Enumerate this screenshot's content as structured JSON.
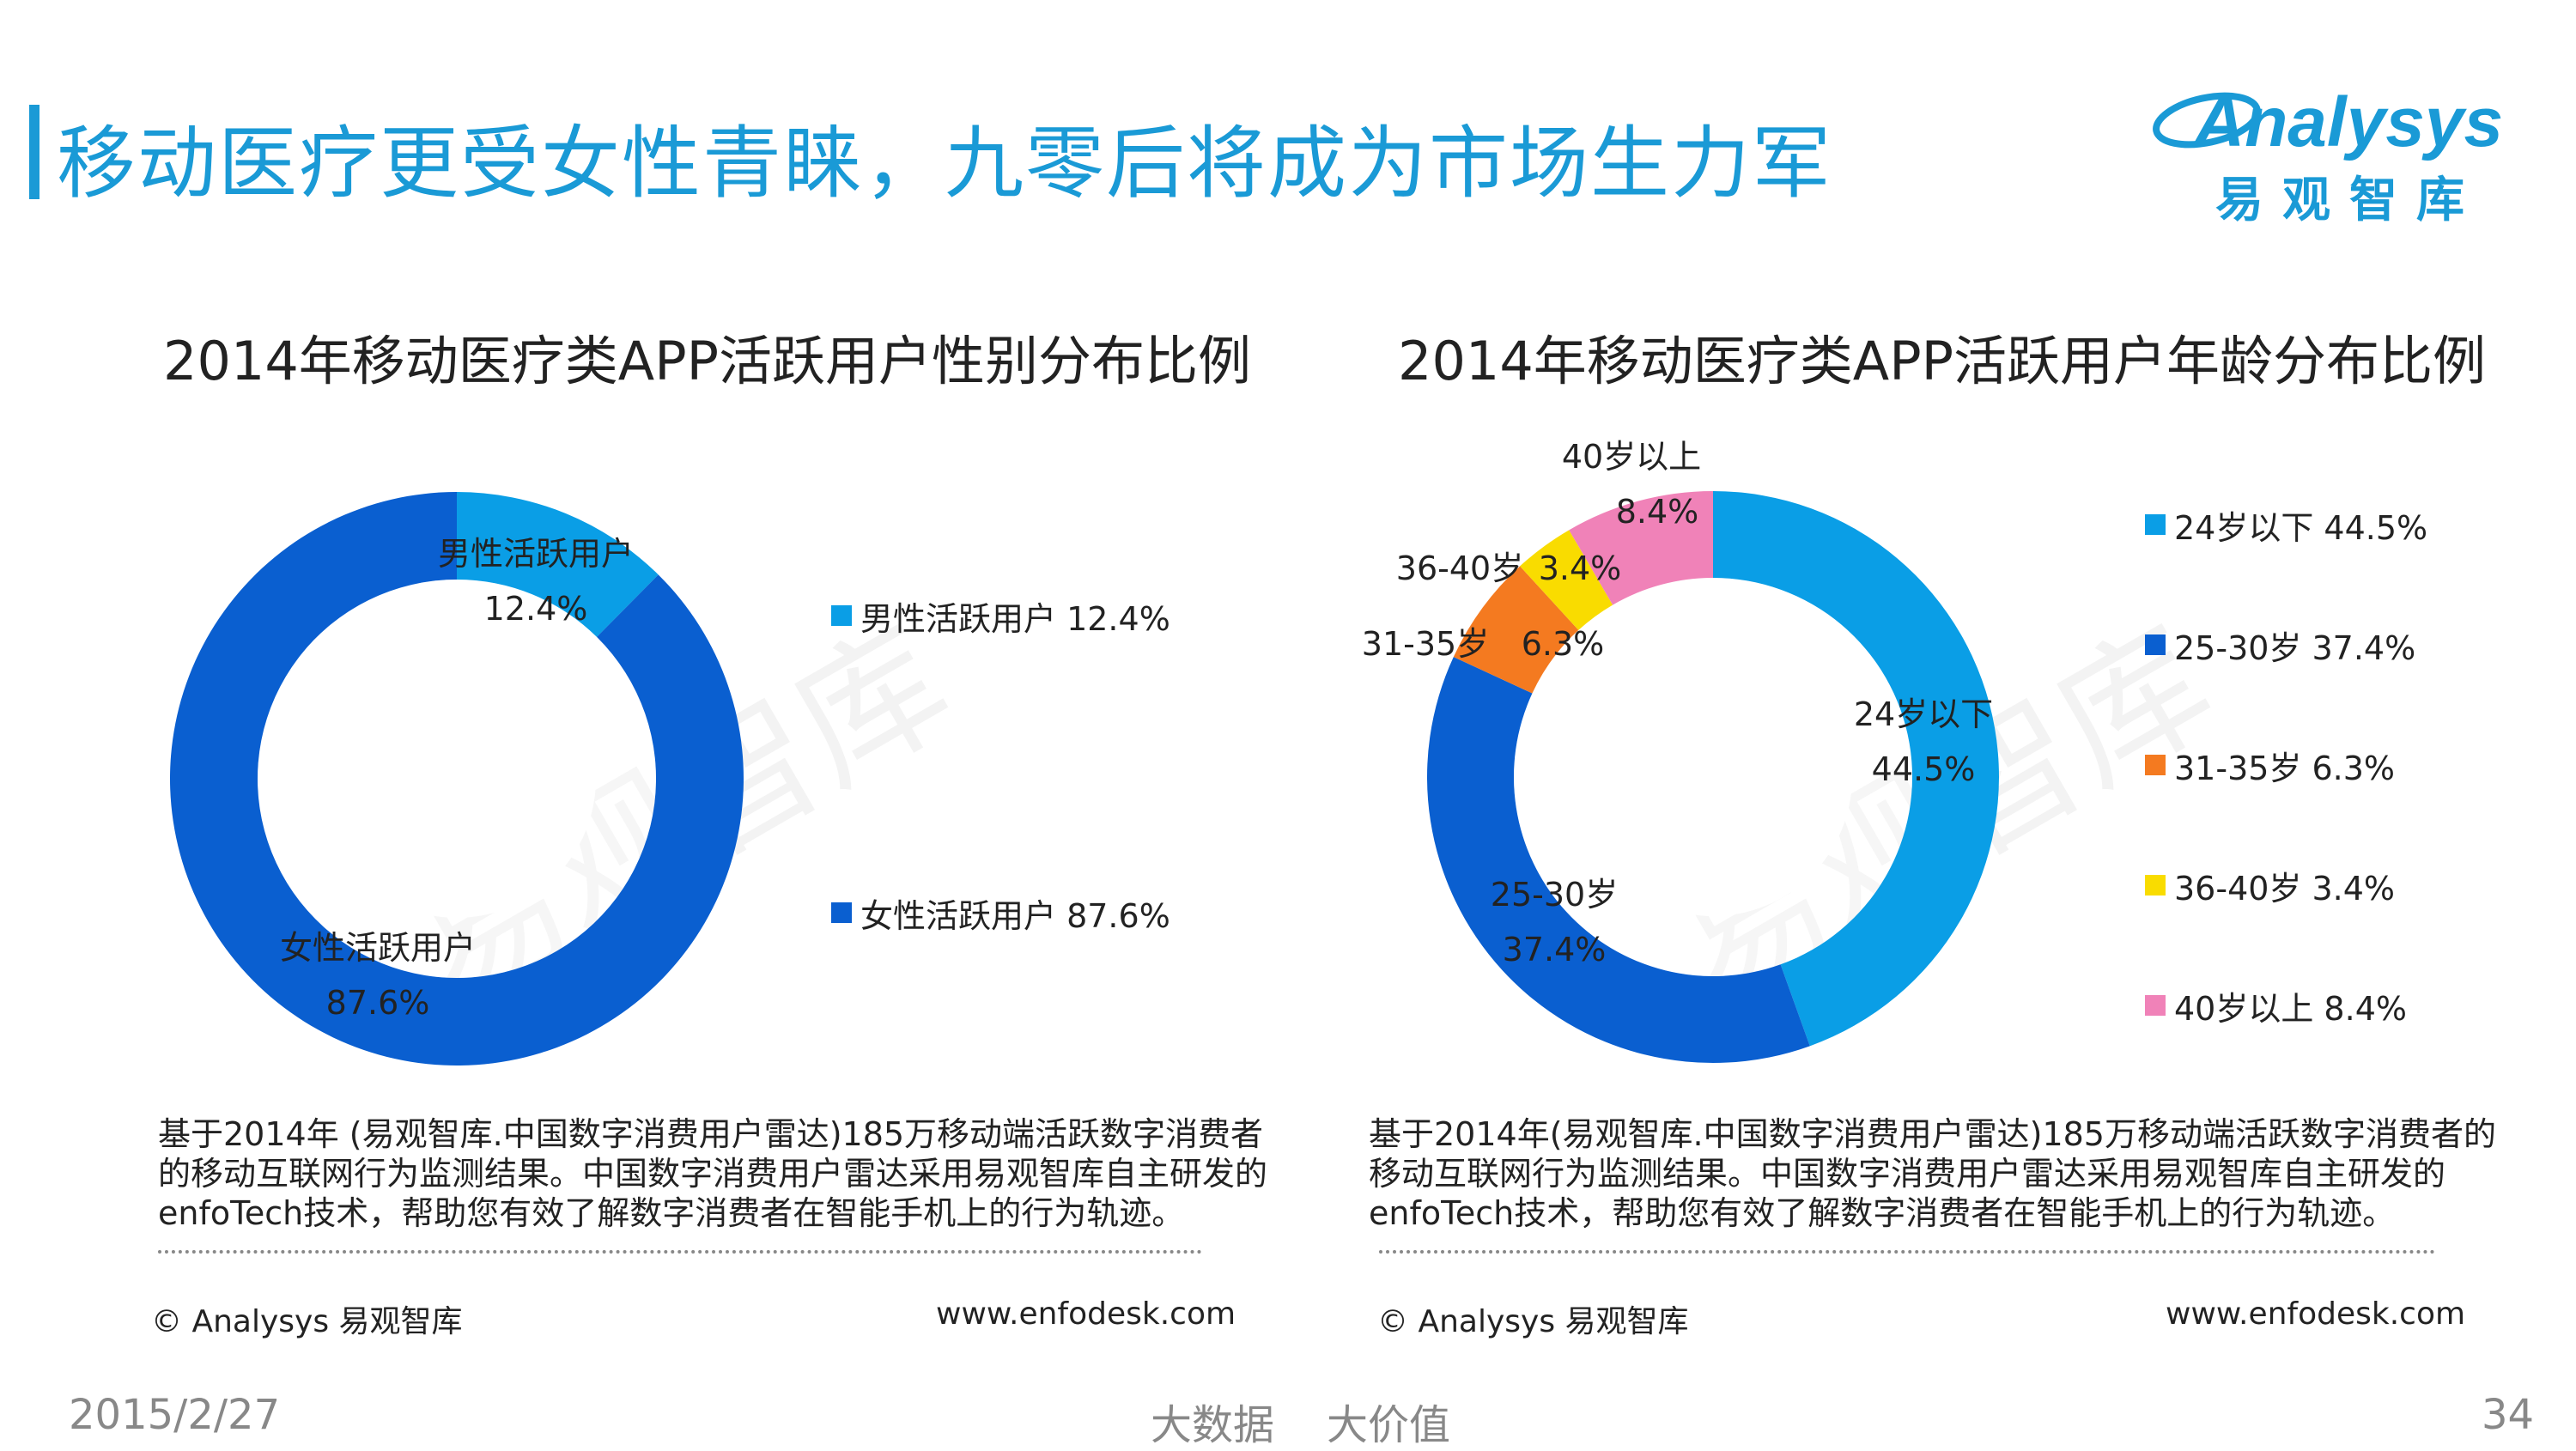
{
  "header": {
    "title": "移动医疗更受女性青睐，九零后将成为市场生力军",
    "logo_text": "Analysys",
    "logo_sub": "易观智库"
  },
  "watermark": "易观智库",
  "colors": {
    "accent": "#1a9ad6",
    "male": "#0a9ee6",
    "female": "#0a5fd0",
    "age_24_below": "#0a9ee6",
    "age_25_30": "#0a5fd0",
    "age_31_35": "#f47a20",
    "age_36_40": "#f9dc00",
    "age_40_above": "#f082b8"
  },
  "chart_data": [
    {
      "type": "pie",
      "style": "donut",
      "title": "2014年移动医疗类APP活跃用户性别分布比例",
      "categories": [
        "男性活跃用户",
        "女性活跃用户"
      ],
      "values": [
        12.4,
        87.6
      ],
      "unit": "%",
      "legend_placement": "right",
      "legend": [
        "男性活跃用户 12.4%",
        "女性活跃用户 87.6%"
      ],
      "slice_labels": [
        {
          "name": "男性活跃用户",
          "value": "12.4%"
        },
        {
          "name": "女性活跃用户",
          "value": "87.6%"
        }
      ]
    },
    {
      "type": "pie",
      "style": "donut",
      "title": "2014年移动医疗类APP活跃用户年龄分布比例",
      "categories": [
        "24岁以下",
        "25-30岁",
        "31-35岁",
        "36-40岁",
        "40岁以上"
      ],
      "values": [
        44.5,
        37.4,
        6.3,
        3.4,
        8.4
      ],
      "unit": "%",
      "legend_placement": "right",
      "legend": [
        "24岁以下 44.5%",
        "25-30岁  37.4%",
        "31-35岁  6.3%",
        "36-40岁  3.4%",
        "40岁以上  8.4%"
      ],
      "slice_labels": [
        {
          "name": "24岁以下",
          "value": "44.5%"
        },
        {
          "name": "25-30岁",
          "value": "37.4%"
        },
        {
          "name": "31-35岁",
          "value": "6.3%"
        },
        {
          "name": "36-40岁",
          "value": "3.4%"
        },
        {
          "name": "40岁以上",
          "value": "8.4%"
        }
      ]
    }
  ],
  "notes": {
    "left": {
      "text": "基于2014年 (易观智库.中国数字消费用户雷达)185万移动端活跃数字消费者的移动互联网行为监测结果。中国数字消费用户雷达采用易观智库自主研发的enfoTech技术，帮助您有效了解数字消费者在智能手机上的行为轨迹。",
      "copyright": "© Analysys 易观智库",
      "url": "www.enfodesk.com"
    },
    "right": {
      "text": "基于2014年(易观智库.中国数字消费用户雷达)185万移动端活跃数字消费者的移动互联网行为监测结果。中国数字消费用户雷达采用易观智库自主研发的enfoTech技术，帮助您有效了解数字消费者在智能手机上的行为轨迹。",
      "copyright": "© Analysys 易观智库",
      "url": "www.enfodesk.com"
    }
  },
  "footer": {
    "date": "2015/2/27",
    "slogan": "大数据    大价值",
    "page": "34"
  }
}
